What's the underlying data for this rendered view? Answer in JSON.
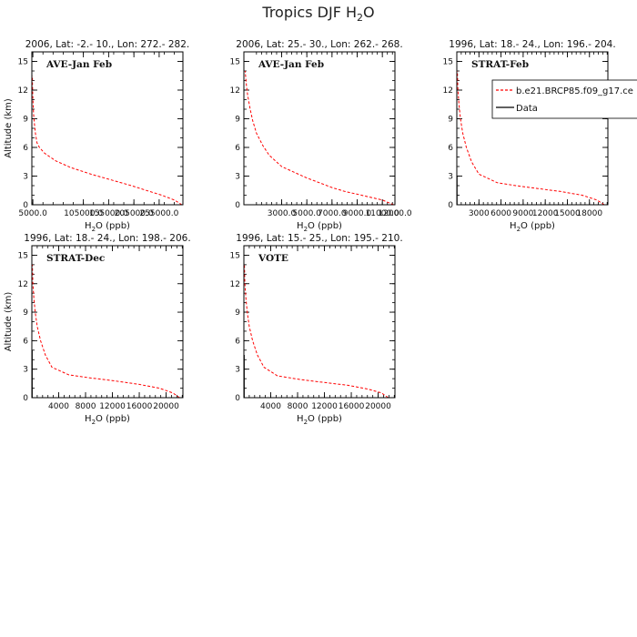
{
  "figure": {
    "title_main": "Tropics DJF H",
    "title_sub": "2",
    "title_tail": "O"
  },
  "legend": {
    "entries": [
      {
        "label": "b.e21.BRCP85.f09_g17.ce",
        "color": "#ff0000",
        "style": "dashed"
      },
      {
        "label": "Data",
        "color": "#000000",
        "style": "solid"
      }
    ]
  },
  "chart_data": [
    {
      "type": "line",
      "title": "2006, Lat: -2.- 10., Lon: 272.- 282.",
      "label": "AVE-Jan Feb",
      "xlabel": "H2O (ppb)",
      "ylabel": "Altitude (km)",
      "xlim": [
        3000,
        302000
      ],
      "ylim": [
        0,
        16
      ],
      "xticks": [
        5000,
        105000,
        155000,
        205000,
        255000,
        305000
      ],
      "xticklabels": [
        "5000.0",
        "105000.0",
        "155000.0",
        "205000.0",
        "255000.0",
        "305000.0"
      ],
      "yticks": [
        0,
        3,
        6,
        9,
        12,
        15
      ],
      "series": [
        {
          "color": "#ff0000",
          "x": [
            300000,
            285000,
            260000,
            230000,
            200000,
            160000,
            120000,
            80000,
            50000,
            28000,
            18000,
            13000,
            10000,
            8000,
            6500,
            5500,
            4800,
            4300,
            4000
          ],
          "y": [
            0.0,
            0.5,
            1.0,
            1.5,
            2.0,
            2.6,
            3.2,
            3.9,
            4.6,
            5.4,
            6.0,
            6.5,
            7.5,
            8.5,
            9.5,
            10.5,
            11.5,
            12.5,
            13.5
          ]
        }
      ]
    },
    {
      "type": "line",
      "title": "2006, Lat: 25.- 30., Lon: 262.- 268.",
      "label": "AVE-Jan Feb",
      "xlabel": "H2O (ppb)",
      "ylabel": "Altitude (km)",
      "xlim": [
        0,
        12000
      ],
      "ylim": [
        0,
        16
      ],
      "xticks": [
        3000,
        5000,
        7000,
        9000,
        11000,
        12000
      ],
      "xticklabels": [
        "3000.0",
        "5000.0",
        "7000.0",
        "9000.0",
        "11000.0",
        "12000.0"
      ],
      "yticks": [
        0,
        3,
        6,
        9,
        12,
        15
      ],
      "series": [
        {
          "color": "#ff0000",
          "x": [
            11900,
            11000,
            10000,
            9000,
            8000,
            7000,
            6000,
            5000,
            4000,
            3000,
            2000,
            1500,
            1000,
            700,
            500,
            300,
            200,
            100
          ],
          "y": [
            0.0,
            0.5,
            0.8,
            1.1,
            1.4,
            1.8,
            2.3,
            2.8,
            3.4,
            4.0,
            5.2,
            6.2,
            7.5,
            8.8,
            10.0,
            11.5,
            12.5,
            14.0
          ]
        }
      ]
    },
    {
      "type": "line",
      "title": "1996, Lat: 18.- 24., Lon: 196.- 204.",
      "label": "STRAT-Feb",
      "xlabel": "H2O (ppb)",
      "ylabel": "Altitude (km)",
      "xlim": [
        0,
        20500
      ],
      "ylim": [
        0,
        16
      ],
      "xticks": [
        3000,
        6000,
        9000,
        12000,
        15000,
        18000
      ],
      "xticklabels": [
        "3000",
        "6000",
        "9000",
        "12000",
        "15000",
        "18000"
      ],
      "yticks": [
        0,
        3,
        6,
        9,
        12,
        15
      ],
      "series": [
        {
          "color": "#ff0000",
          "x": [
            20000,
            19000,
            17000,
            14000,
            11000,
            8000,
            5500,
            3000,
            2000,
            1300,
            800,
            500,
            300,
            150,
            80
          ],
          "y": [
            0.0,
            0.5,
            1.0,
            1.4,
            1.7,
            2.0,
            2.3,
            3.2,
            4.5,
            6.0,
            7.5,
            9.0,
            10.5,
            12.0,
            14.0
          ]
        },
        {
          "color": "#000000",
          "x": [
            40,
            40
          ],
          "y": [
            0.0,
            3.0
          ]
        }
      ]
    },
    {
      "type": "line",
      "title": "1996, Lat: 18.- 24., Lon: 198.- 206.",
      "label": "STRAT-Dec",
      "xlabel": "H2O (ppb)",
      "ylabel": "Altitude (km)",
      "xlim": [
        0,
        22500
      ],
      "ylim": [
        0,
        16
      ],
      "xticks": [
        4000,
        8000,
        12000,
        16000,
        20000
      ],
      "xticklabels": [
        "4000",
        "8000",
        "12000",
        "16000",
        "20000"
      ],
      "yticks": [
        0,
        3,
        6,
        9,
        12,
        15
      ],
      "series": [
        {
          "color": "#ff0000",
          "x": [
            22000,
            21000,
            19000,
            16000,
            12000,
            8500,
            5500,
            3000,
            2000,
            1300,
            800,
            500,
            300,
            150,
            80
          ],
          "y": [
            0.0,
            0.5,
            1.0,
            1.4,
            1.8,
            2.1,
            2.4,
            3.2,
            4.5,
            6.0,
            7.5,
            9.0,
            10.5,
            12.0,
            14.0
          ]
        },
        {
          "color": "#000000",
          "x": [
            60,
            60
          ],
          "y": [
            0.0,
            5.0
          ]
        }
      ]
    },
    {
      "type": "line",
      "title": "1996, Lat: 15.- 25., Lon: 195.- 210.",
      "label": "VOTE",
      "xlabel": "H2O (ppb)",
      "ylabel": "Altitude (km)",
      "xlim": [
        0,
        22500
      ],
      "ylim": [
        0,
        16
      ],
      "xticks": [
        4000,
        8000,
        12000,
        16000,
        20000
      ],
      "xticklabels": [
        "4000",
        "8000",
        "12000",
        "16000",
        "20000"
      ],
      "yticks": [
        0,
        3,
        6,
        9,
        12,
        15
      ],
      "series": [
        {
          "color": "#ff0000",
          "x": [
            21500,
            20500,
            18500,
            15500,
            12000,
            8500,
            5000,
            3000,
            2000,
            1300,
            800,
            500,
            300,
            150,
            80
          ],
          "y": [
            0.0,
            0.5,
            0.9,
            1.3,
            1.6,
            1.9,
            2.3,
            3.2,
            4.5,
            6.0,
            7.5,
            9.0,
            10.5,
            12.0,
            14.0
          ]
        },
        {
          "color": "#000000",
          "x": [
            50,
            50
          ],
          "y": [
            0.0,
            4.5
          ]
        }
      ]
    }
  ]
}
